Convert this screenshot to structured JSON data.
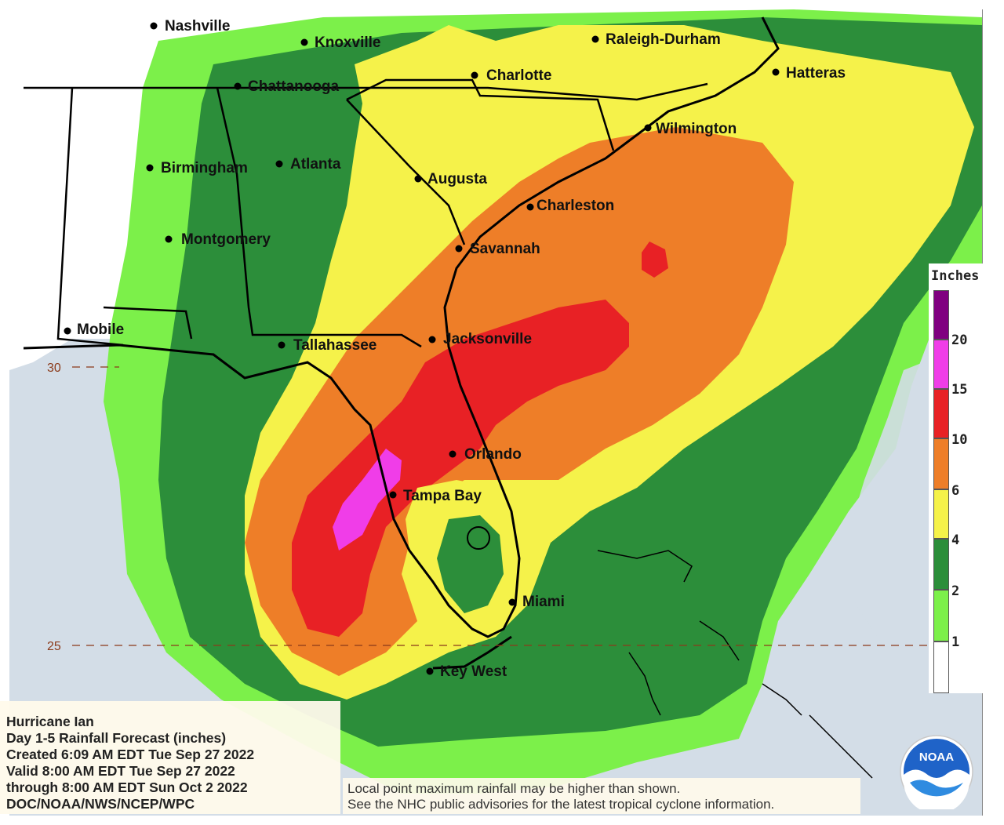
{
  "map": {
    "cities": [
      {
        "name": "Nashville"
      },
      {
        "name": "Knoxville"
      },
      {
        "name": "Raleigh-Durham"
      },
      {
        "name": "Chattanooga"
      },
      {
        "name": "Charlotte"
      },
      {
        "name": "Hatteras"
      },
      {
        "name": "Wilmington"
      },
      {
        "name": "Birmingham"
      },
      {
        "name": "Atlanta"
      },
      {
        "name": "Augusta"
      },
      {
        "name": "Charleston"
      },
      {
        "name": "Montgomery"
      },
      {
        "name": "Savannah"
      },
      {
        "name": "Mobile"
      },
      {
        "name": "Tallahassee"
      },
      {
        "name": "Jacksonville"
      },
      {
        "name": "Orlando"
      },
      {
        "name": "Tampa Bay"
      },
      {
        "name": "Miami"
      },
      {
        "name": "Key West"
      }
    ],
    "latitude_labels": [
      "30",
      "25"
    ],
    "colors": {
      "ocean": "#d3dde7",
      "lt_green": "#7cf04a",
      "green": "#2c8e3a",
      "yellow": "#f5f24a",
      "orange": "#ee7e28",
      "red": "#e82125",
      "magenta": "#f03de8"
    }
  },
  "legend": {
    "title": "Inches",
    "ticks": [
      "20",
      "15",
      "10",
      "6",
      "4",
      "2",
      "1"
    ],
    "bins": [
      {
        "color": "#800080"
      },
      {
        "color": "#f03de8"
      },
      {
        "color": "#e82125"
      },
      {
        "color": "#ee7e28"
      },
      {
        "color": "#f5f24a"
      },
      {
        "color": "#2c8e3a"
      },
      {
        "color": "#7cf04a"
      },
      {
        "color": "#ffffff"
      }
    ]
  },
  "info": {
    "line1": "Hurricane Ian",
    "line2": "Day 1-5 Rainfall Forecast (inches)",
    "line3": "Created 6:09 AM EDT Tue Sep 27 2022",
    "line4": "Valid 8:00 AM EDT Tue Sep 27 2022",
    "line5": "through 8:00 AM EDT Sun Oct 2 2022",
    "line6": "DOC/NOAA/NWS/NCEP/WPC"
  },
  "disclaimer": {
    "line1": "Local point maximum rainfall may be higher than shown.",
    "line2": "See the NHC public advisories for the latest tropical cyclone information."
  },
  "logo": {
    "text": "NOAA"
  }
}
